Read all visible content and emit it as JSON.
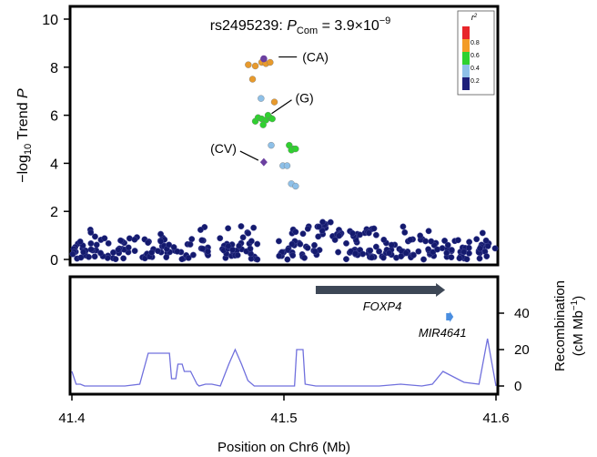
{
  "chart_data": [
    {
      "type": "scatter",
      "title_prefix": "rs2495239: ",
      "title_italic": "P",
      "title_sub": "Com",
      "title_eq": " = 3.9×10",
      "title_exp": "−9",
      "ylabel_prefix": "−log",
      "ylabel_sub": "10",
      "ylabel_mid": " Trend ",
      "ylabel_italic": "P",
      "xlim": [
        41.4,
        41.6
      ],
      "ylim": [
        0,
        10
      ],
      "yticks": [
        "0",
        "2",
        "4",
        "6",
        "8",
        "10"
      ],
      "legend": {
        "title": "r",
        "title_sup": "2",
        "labels": [
          "0.8",
          "0.6",
          "0.4",
          "0.2"
        ],
        "bins": [
          {
            "color": "#e8252a"
          },
          {
            "color": "#f39c27"
          },
          {
            "color": "#2fd12f"
          },
          {
            "color": "#8ec0e8"
          },
          {
            "color": "#1d1f7a"
          }
        ]
      },
      "colors": {
        "navy": "#141a6e",
        "lightblue": "#8ec0e8",
        "green": "#2fd12f",
        "orange": "#e89a2c",
        "purple": "#6b3fa0"
      },
      "annotations": [
        {
          "text": "(CA)",
          "x": 41.4915,
          "y": 8.35
        },
        {
          "text": "(G)",
          "x": 41.4985,
          "y": 6.45
        },
        {
          "text": "(CV)",
          "x": 41.4905,
          "y": 4.05
        }
      ],
      "highlight_points": [
        {
          "x": 41.4905,
          "y": 8.35,
          "color": "purple",
          "shape": "circle"
        },
        {
          "x": 41.4905,
          "y": 4.05,
          "color": "purple",
          "shape": "diamond"
        }
      ],
      "points": [
        {
          "x": 41.4865,
          "y": 8.05,
          "c": "orange"
        },
        {
          "x": 41.4895,
          "y": 8.2,
          "c": "orange"
        },
        {
          "x": 41.4915,
          "y": 8.15,
          "c": "orange"
        },
        {
          "x": 41.4935,
          "y": 8.2,
          "c": "orange"
        },
        {
          "x": 41.4832,
          "y": 8.1,
          "c": "orange"
        },
        {
          "x": 41.4852,
          "y": 7.5,
          "c": "orange"
        },
        {
          "x": 41.4955,
          "y": 6.55,
          "c": "orange"
        },
        {
          "x": 41.4892,
          "y": 6.7,
          "c": "lightblue"
        },
        {
          "x": 41.4865,
          "y": 5.75,
          "c": "green"
        },
        {
          "x": 41.4878,
          "y": 5.9,
          "c": "green"
        },
        {
          "x": 41.4895,
          "y": 5.85,
          "c": "green"
        },
        {
          "x": 41.4915,
          "y": 5.8,
          "c": "green"
        },
        {
          "x": 41.4935,
          "y": 5.9,
          "c": "green"
        },
        {
          "x": 41.4925,
          "y": 6.0,
          "c": "green"
        },
        {
          "x": 41.4902,
          "y": 5.6,
          "c": "green"
        },
        {
          "x": 41.4945,
          "y": 5.85,
          "c": "green"
        },
        {
          "x": 41.5025,
          "y": 4.75,
          "c": "green"
        },
        {
          "x": 41.5045,
          "y": 4.6,
          "c": "green"
        },
        {
          "x": 41.5035,
          "y": 4.55,
          "c": "green"
        },
        {
          "x": 41.5055,
          "y": 4.6,
          "c": "green"
        },
        {
          "x": 41.494,
          "y": 4.75,
          "c": "lightblue"
        },
        {
          "x": 41.4995,
          "y": 3.9,
          "c": "lightblue"
        },
        {
          "x": 41.5015,
          "y": 3.9,
          "c": "lightblue"
        },
        {
          "x": 41.5035,
          "y": 3.15,
          "c": "lightblue"
        },
        {
          "x": 41.5055,
          "y": 3.05,
          "c": "lightblue"
        }
      ]
    },
    {
      "type": "line",
      "ylabel_line1": "Recombination",
      "ylabel_line2_prefix": "(cM Mb",
      "ylabel_line2_sup": "−1",
      "ylabel_line2_suffix": ")",
      "xlabel": "Position on Chr6 (Mb)",
      "xticks": [
        "41.4",
        "41.5",
        "41.6"
      ],
      "yticks_right": [
        "0",
        "20",
        "40"
      ],
      "xlim": [
        41.4,
        41.6
      ],
      "ylim": [
        -4,
        50
      ],
      "line_color": "#7070dd",
      "x": [
        41.4,
        41.402,
        41.404,
        41.406,
        41.415,
        41.425,
        41.432,
        41.436,
        41.446,
        41.447,
        41.449,
        41.45,
        41.452,
        41.453,
        41.456,
        41.459,
        41.46,
        41.463,
        41.466,
        41.47,
        41.474,
        41.477,
        41.48,
        41.483,
        41.486,
        41.492,
        41.498,
        41.505,
        41.506,
        41.509,
        41.51,
        41.515,
        41.525,
        41.535,
        41.545,
        41.555,
        41.565,
        41.57,
        41.575,
        41.585,
        41.592,
        41.596,
        41.6
      ],
      "y": [
        8,
        1,
        1,
        0,
        0,
        0,
        1,
        18,
        18,
        4,
        4,
        12,
        12,
        8,
        8,
        1,
        0,
        1,
        1,
        0,
        12,
        20,
        12,
        3,
        0,
        0,
        0,
        0,
        20,
        20,
        1,
        0,
        0,
        0,
        0,
        1,
        0,
        1,
        8,
        2,
        1,
        26,
        0
      ],
      "genes": [
        {
          "name": "FOXP4",
          "start": 41.515,
          "end": 41.576,
          "color": "#3d4756"
        },
        {
          "name": "MIR4641",
          "start": 41.5765,
          "end": 41.5795,
          "color": "#4a8ee0"
        }
      ]
    }
  ]
}
